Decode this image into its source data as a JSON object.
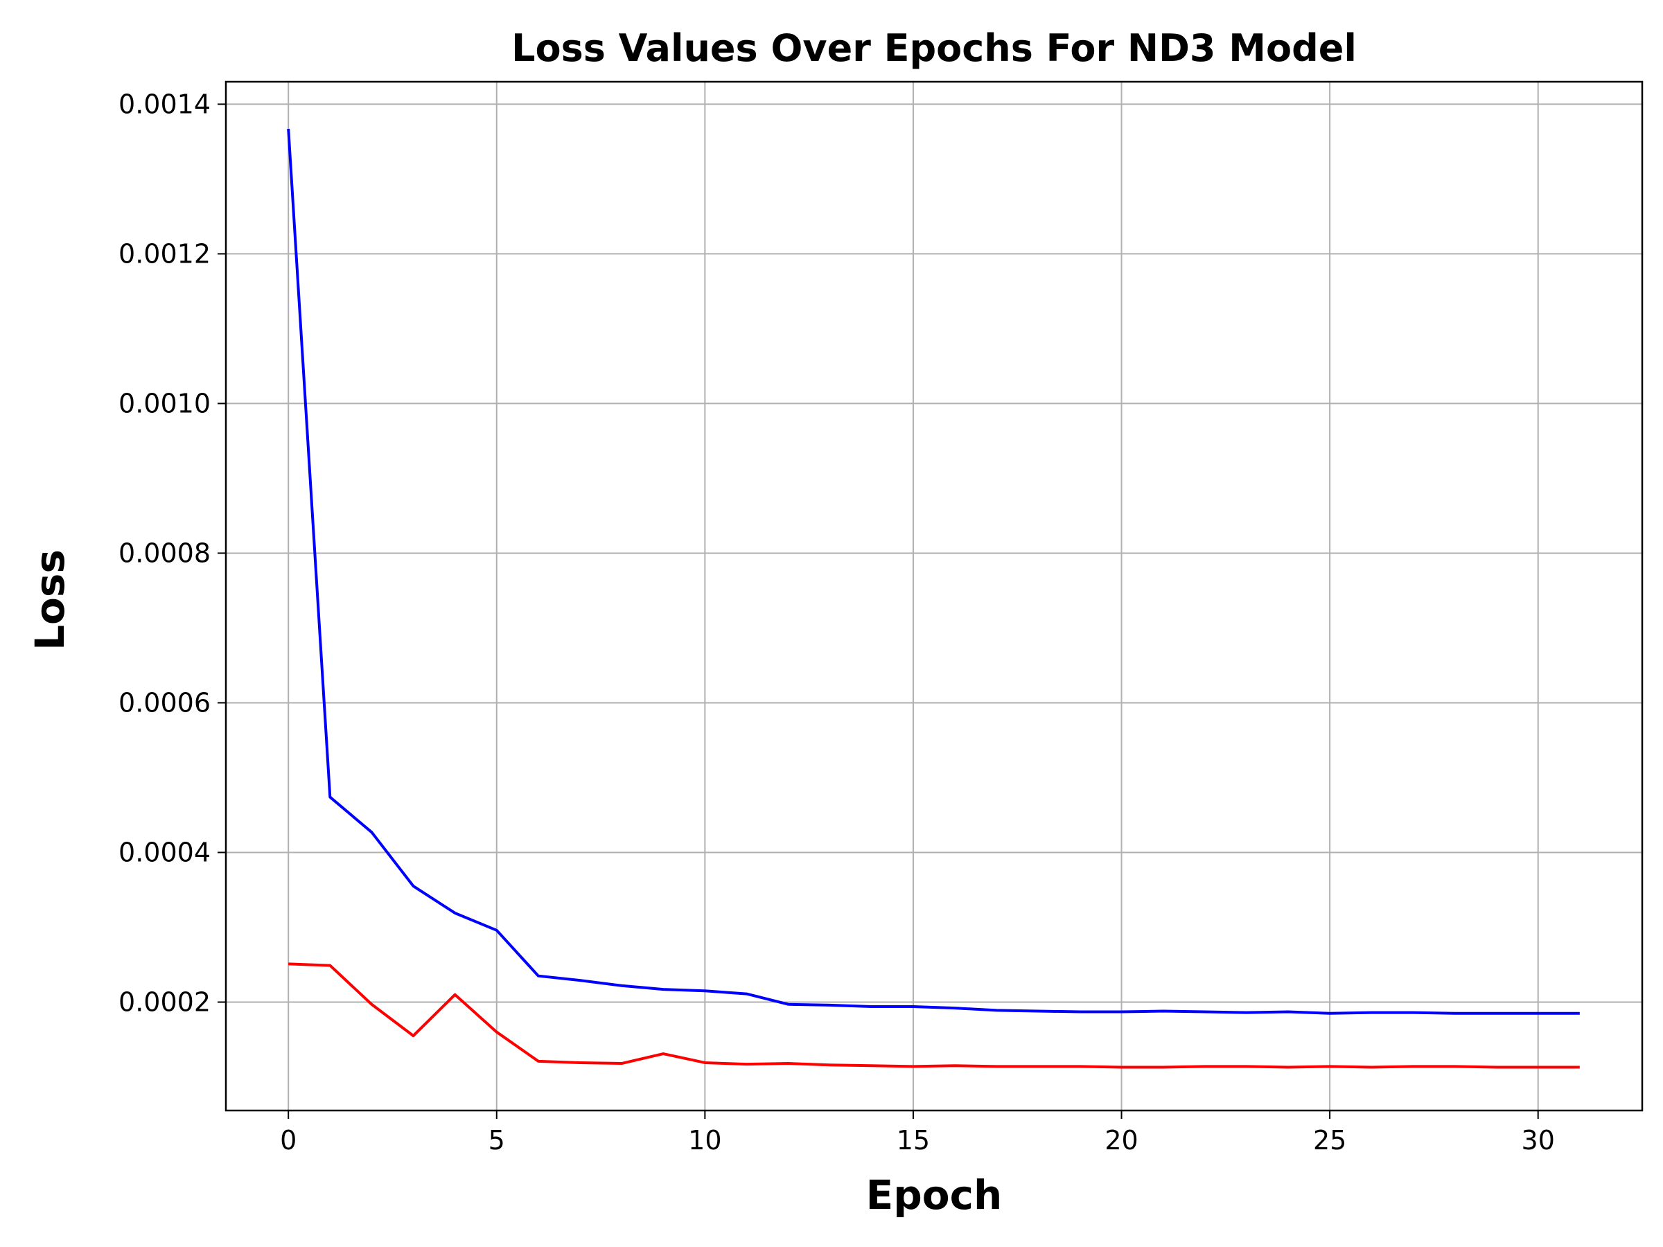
{
  "chart_data": {
    "type": "line",
    "title": "Loss Values Over Epochs For ND3 Model",
    "xlabel": "Epoch",
    "ylabel": "Loss",
    "xlim": [
      -1.5,
      32.5
    ],
    "ylim": [
      5.51e-05,
      0.00143
    ],
    "xticks": [
      0,
      5,
      10,
      15,
      20,
      25,
      30
    ],
    "yticks": [
      0.0002,
      0.0004,
      0.0006,
      0.0008,
      0.001,
      0.0012,
      0.0014
    ],
    "ytick_labels": [
      "0.0002",
      "0.0004",
      "0.0006",
      "0.0008",
      "0.0010",
      "0.0012",
      "0.0014"
    ],
    "grid": true,
    "x": [
      0,
      1,
      2,
      3,
      4,
      5,
      6,
      7,
      8,
      9,
      10,
      11,
      12,
      13,
      14,
      15,
      16,
      17,
      18,
      19,
      20,
      21,
      22,
      23,
      24,
      25,
      26,
      27,
      28,
      29,
      30,
      31
    ],
    "series": [
      {
        "color": "#0000ff",
        "values": [
          0.001367,
          0.000474,
          0.000427,
          0.000355,
          0.000319,
          0.000296,
          0.000235,
          0.000229,
          0.000222,
          0.000217,
          0.000215,
          0.000211,
          0.000197,
          0.000196,
          0.000194,
          0.000194,
          0.000192,
          0.000189,
          0.000188,
          0.000187,
          0.000187,
          0.000188,
          0.000187,
          0.000186,
          0.000187,
          0.000185,
          0.000186,
          0.000186,
          0.000185,
          0.000185,
          0.000185,
          0.000185
        ]
      },
      {
        "color": "#ff0000",
        "values": [
          0.000251,
          0.000249,
          0.000197,
          0.000155,
          0.00021,
          0.00016,
          0.000121,
          0.000119,
          0.000118,
          0.000131,
          0.000119,
          0.000117,
          0.000118,
          0.000116,
          0.000115,
          0.000114,
          0.000115,
          0.000114,
          0.000114,
          0.000114,
          0.000113,
          0.000113,
          0.000114,
          0.000114,
          0.000113,
          0.000114,
          0.000113,
          0.000114,
          0.000114,
          0.000113,
          0.000113,
          0.000113
        ]
      }
    ]
  }
}
